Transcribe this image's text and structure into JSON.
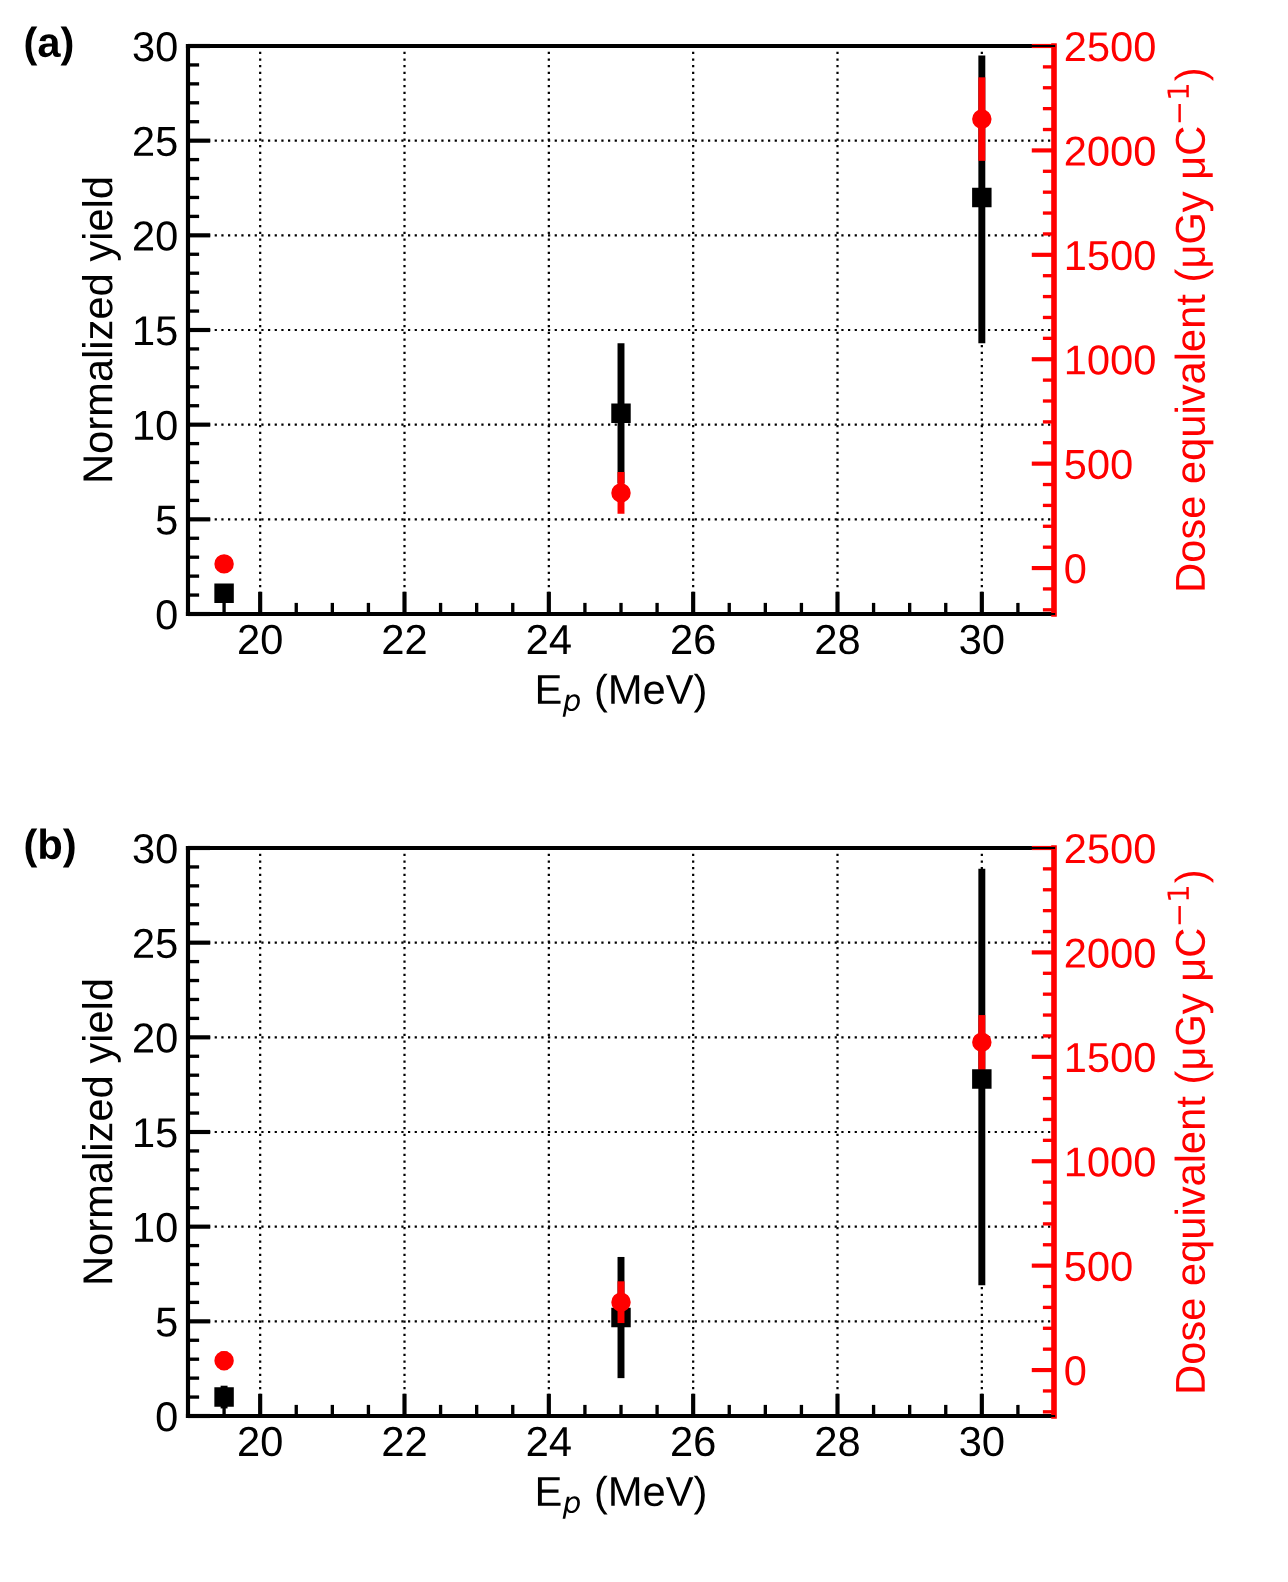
{
  "chart_data": [
    {
      "type": "scatter",
      "title": "(a)",
      "xlabel": "E$_{p}$ (MeV)",
      "ylabel": "Normalized yield",
      "y2label": "Dose equivalent (μGy μC$^{−1}$)",
      "x": [
        19.5,
        25,
        30
      ],
      "xlim": [
        19,
        31
      ],
      "xticks": [
        20,
        22,
        24,
        26,
        28,
        30
      ],
      "ylim": [
        0,
        30
      ],
      "yticks": [
        0,
        5,
        10,
        15,
        20,
        25,
        30
      ],
      "y2lim": [
        -220,
        2500
      ],
      "y2ticks": [
        0,
        500,
        1000,
        1500,
        2000,
        2500
      ],
      "grid": true,
      "series": [
        {
          "color": "#000000",
          "marker": "square",
          "values": [
            1.1,
            10.6,
            22
          ],
          "errors": [
            null,
            3.7,
            [
              14.3,
              29.5
            ]
          ]
        },
        {
          "color": "#ff0000",
          "marker": "circle",
          "axis": "y2",
          "values": [
            20,
            360,
            2150
          ],
          "errors": [
            null,
            100,
            200
          ]
        }
      ]
    },
    {
      "type": "scatter",
      "title": "(b)",
      "xlabel": "E$_{p}$ (MeV)",
      "ylabel": "Normalized yield",
      "y2label": "Dose equivalent (μGy μC$^{−1}$)",
      "x": [
        19.5,
        25,
        30
      ],
      "xlim": [
        19,
        31
      ],
      "xticks": [
        20,
        22,
        24,
        26,
        28,
        30
      ],
      "ylim": [
        0,
        30
      ],
      "yticks": [
        0,
        5,
        10,
        15,
        20,
        25,
        30
      ],
      "y2lim": [
        -220,
        2500
      ],
      "y2ticks": [
        0,
        500,
        1000,
        1500,
        2000,
        2500
      ],
      "grid": true,
      "series": [
        {
          "color": "#000000",
          "marker": "square",
          "values": [
            1.0,
            5.2,
            17.8
          ],
          "errors": [
            0.6,
            3.2,
            [
              6.9,
              28.9
            ]
          ]
        },
        {
          "color": "#ff0000",
          "marker": "circle",
          "axis": "y2",
          "values": [
            45,
            325,
            1570
          ],
          "errors": [
            45,
            100,
            130
          ]
        }
      ]
    }
  ]
}
